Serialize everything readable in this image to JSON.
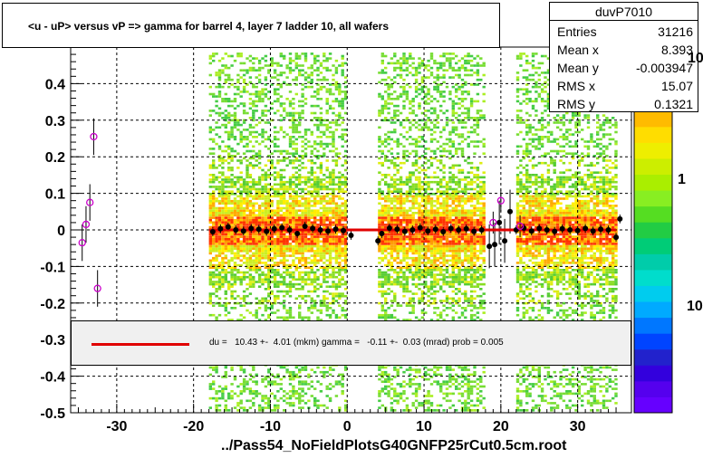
{
  "title": "<u - uP>       versus   vP =>  gamma for barrel 4, layer 7 ladder 10, all wafers",
  "stats": {
    "name": "duvP7010",
    "rows": [
      {
        "label": "Entries",
        "value": "31216"
      },
      {
        "label": "Mean x",
        "value": "8.393"
      },
      {
        "label": "Mean y",
        "value": "-0.003947"
      },
      {
        "label": "RMS x",
        "value": "15.07"
      },
      {
        "label": "RMS y",
        "value": "0.1321"
      }
    ]
  },
  "fit_text": "du =   10.43 +-  4.01 (mkm) gamma =   -0.11 +-  0.03 (mrad) prob = 0.005",
  "footer": "../Pass54_NoFieldPlotsG40GNFP25rCut0.5cm.root",
  "palette_labels": [
    "10",
    "1",
    "10"
  ],
  "colors": {
    "fit_line": "#e00000",
    "profile_points": "#000000",
    "outlier_markers": "#cc00cc"
  },
  "chart_data": {
    "type": "scatter",
    "title": "<u - uP>       versus   vP =>  gamma for barrel 4, layer 7 ladder 10, all wafers",
    "xlim": [
      -36,
      37
    ],
    "ylim": [
      -0.5,
      0.5
    ],
    "x_ticks": [
      "-30",
      "-20",
      "-10",
      "0",
      "10",
      "20",
      "30"
    ],
    "x_tick_values": [
      -30,
      -20,
      -10,
      0,
      10,
      20,
      30
    ],
    "y_ticks": [
      "-0.5",
      "-0.4",
      "-0.3",
      "-0.2",
      "-0.1",
      "0",
      "0.1",
      "0.2",
      "0.3",
      "0.4"
    ],
    "y_tick_values": [
      -0.5,
      -0.4,
      -0.3,
      -0.2,
      -0.1,
      0,
      0.1,
      0.2,
      0.3,
      0.4
    ],
    "grid": true,
    "occupied_x_bands": [
      [
        -18,
        0
      ],
      [
        4,
        18
      ],
      [
        22,
        35
      ]
    ],
    "fit_line": {
      "x": [
        -18,
        35
      ],
      "y": [
        0.0,
        0.0
      ]
    },
    "profile_points": [
      {
        "x": -17.5,
        "y": -0.005
      },
      {
        "x": -16.5,
        "y": 0.003
      },
      {
        "x": -15.5,
        "y": 0.008
      },
      {
        "x": -14.5,
        "y": 0.0
      },
      {
        "x": -13.5,
        "y": -0.003
      },
      {
        "x": -12.5,
        "y": 0.004
      },
      {
        "x": -11.5,
        "y": 0.002
      },
      {
        "x": -10.5,
        "y": -0.004
      },
      {
        "x": -9.5,
        "y": 0.003
      },
      {
        "x": -8.5,
        "y": 0.006
      },
      {
        "x": -7.5,
        "y": 0.0
      },
      {
        "x": -6.5,
        "y": -0.01
      },
      {
        "x": -5.5,
        "y": 0.01
      },
      {
        "x": -4.5,
        "y": 0.004
      },
      {
        "x": -3.5,
        "y": 0.0
      },
      {
        "x": -2.5,
        "y": -0.003
      },
      {
        "x": -1.5,
        "y": 0.002
      },
      {
        "x": -0.5,
        "y": -0.002
      },
      {
        "x": 0.5,
        "y": -0.015
      },
      {
        "x": 4.0,
        "y": -0.03
      },
      {
        "x": 4.5,
        "y": -0.01
      },
      {
        "x": 5.5,
        "y": 0.005
      },
      {
        "x": 6.5,
        "y": 0.002
      },
      {
        "x": 7.5,
        "y": -0.004
      },
      {
        "x": 8.5,
        "y": 0.0
      },
      {
        "x": 9.5,
        "y": 0.006
      },
      {
        "x": 10.5,
        "y": -0.003
      },
      {
        "x": 11.5,
        "y": 0.002
      },
      {
        "x": 12.5,
        "y": -0.005
      },
      {
        "x": 13.5,
        "y": 0.004
      },
      {
        "x": 14.5,
        "y": 0.0
      },
      {
        "x": 15.5,
        "y": 0.003
      },
      {
        "x": 16.5,
        "y": -0.004
      },
      {
        "x": 17.5,
        "y": 0.0
      },
      {
        "x": 18.5,
        "y": -0.045
      },
      {
        "x": 19.2,
        "y": -0.04
      },
      {
        "x": 19.8,
        "y": 0.02
      },
      {
        "x": 20.5,
        "y": -0.03
      },
      {
        "x": 21.2,
        "y": 0.05
      },
      {
        "x": 22.0,
        "y": 0.0
      },
      {
        "x": 23.0,
        "y": 0.005
      },
      {
        "x": 24.0,
        "y": -0.003
      },
      {
        "x": 25.0,
        "y": 0.004
      },
      {
        "x": 26.0,
        "y": 0.0
      },
      {
        "x": 27.0,
        "y": -0.004
      },
      {
        "x": 28.0,
        "y": 0.003
      },
      {
        "x": 29.0,
        "y": 0.0
      },
      {
        "x": 30.0,
        "y": -0.002
      },
      {
        "x": 31.0,
        "y": 0.004
      },
      {
        "x": 32.0,
        "y": -0.003
      },
      {
        "x": 33.0,
        "y": 0.002
      },
      {
        "x": 34.0,
        "y": 0.0
      },
      {
        "x": 35.0,
        "y": -0.02
      },
      {
        "x": 35.5,
        "y": 0.03
      }
    ],
    "outlier_points": [
      {
        "x": -34.5,
        "y": -0.035
      },
      {
        "x": -34.0,
        "y": 0.015
      },
      {
        "x": -33.5,
        "y": 0.075
      },
      {
        "x": -33.0,
        "y": 0.255
      },
      {
        "x": -32.5,
        "y": -0.16
      },
      {
        "x": 19.0,
        "y": 0.02
      },
      {
        "x": 20.0,
        "y": 0.08
      },
      {
        "x": 22.5,
        "y": 0.01
      }
    ]
  }
}
